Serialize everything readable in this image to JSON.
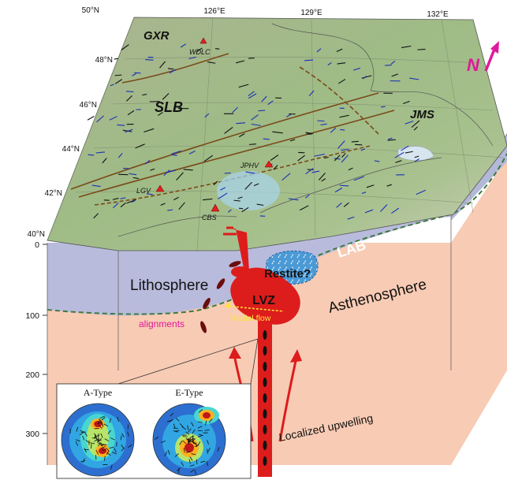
{
  "map": {
    "lat_labels": [
      "50°N",
      "48°N",
      "46°N",
      "44°N",
      "42°N",
      "40°N"
    ],
    "lon_labels": [
      "126°E",
      "129°E",
      "132°E"
    ],
    "regions": [
      "GXR",
      "SLB",
      "JMS"
    ],
    "volcanoes": [
      "WDLC",
      "JPHV",
      "LGV",
      "CBS"
    ],
    "north_label": "N",
    "north_color": "#e0199b"
  },
  "section": {
    "depth_ticks": [
      "0",
      "100",
      "200",
      "300"
    ],
    "lithosphere": "Lithosphere",
    "asthenosphere": "Asthenosphere",
    "lab": "LAB",
    "restite": "Restite?",
    "lvz": "LVZ",
    "radial_flow": "Radial flow",
    "alignments": "alignments",
    "upwelling": "Localized upwelling"
  },
  "inset": {
    "a_type": "A-Type",
    "e_type": "E-Type"
  },
  "colors": {
    "lithosphere": "#b9bbdc",
    "asthenosphere": "#f8cbb4",
    "plume": "#dd1c1c",
    "map_green": "#9eb88a",
    "lab_dash": "#3e7a3e"
  }
}
